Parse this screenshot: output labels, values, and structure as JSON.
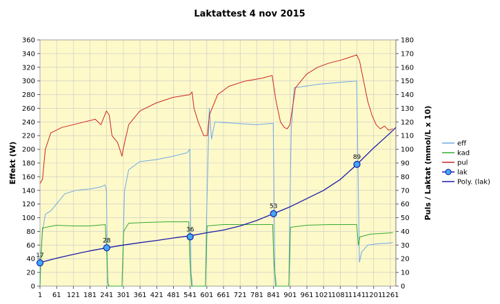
{
  "chart_data": {
    "type": "line",
    "title": "Laktattest 4 nov 2015",
    "ylabel": "Effekt (W)",
    "y2label": "Puls / Laktat (mmol/L x 10)",
    "xlim": [
      1,
      1281
    ],
    "ylim": [
      0,
      360
    ],
    "y2lim": [
      0,
      180
    ],
    "xticks": [
      "1",
      "61",
      "121",
      "181",
      "241",
      "301",
      "361",
      "421",
      "481",
      "541",
      "601",
      "661",
      "721",
      "781",
      "841",
      "901",
      "961",
      "1021",
      "1081",
      "1141",
      "1201",
      "1261"
    ],
    "yticks": [
      "0",
      "20",
      "40",
      "60",
      "80",
      "100",
      "120",
      "140",
      "160",
      "180",
      "200",
      "220",
      "240",
      "260",
      "280",
      "300",
      "320",
      "340",
      "360"
    ],
    "y2ticks": [
      "0",
      "10",
      "20",
      "30",
      "40",
      "50",
      "60",
      "70",
      "80",
      "90",
      "100",
      "110",
      "120",
      "130",
      "140",
      "150",
      "160",
      "170",
      "180"
    ],
    "grid": true,
    "legend_position": "right",
    "series": [
      {
        "name": "eff",
        "axis": "left",
        "color": "#6fa8e6",
        "points": [
          [
            1,
            0
          ],
          [
            5,
            50
          ],
          [
            10,
            80
          ],
          [
            20,
            105
          ],
          [
            40,
            110
          ],
          [
            60,
            120
          ],
          [
            90,
            135
          ],
          [
            130,
            140
          ],
          [
            180,
            142
          ],
          [
            220,
            145
          ],
          [
            235,
            148
          ],
          [
            240,
            140
          ],
          [
            244,
            5
          ],
          [
            250,
            0
          ],
          [
            296,
            0
          ],
          [
            300,
            60
          ],
          [
            305,
            140
          ],
          [
            320,
            170
          ],
          [
            360,
            182
          ],
          [
            420,
            185
          ],
          [
            480,
            190
          ],
          [
            530,
            195
          ],
          [
            540,
            200
          ],
          [
            544,
            20
          ],
          [
            550,
            0
          ],
          [
            596,
            0
          ],
          [
            600,
            100
          ],
          [
            606,
            200
          ],
          [
            610,
            260
          ],
          [
            618,
            215
          ],
          [
            630,
            240
          ],
          [
            700,
            238
          ],
          [
            780,
            236
          ],
          [
            840,
            238
          ],
          [
            846,
            20
          ],
          [
            852,
            0
          ],
          [
            896,
            0
          ],
          [
            900,
            120
          ],
          [
            905,
            230
          ],
          [
            915,
            290
          ],
          [
            950,
            292
          ],
          [
            1000,
            295
          ],
          [
            1080,
            298
          ],
          [
            1140,
            300
          ],
          [
            1146,
            140
          ],
          [
            1150,
            35
          ],
          [
            1158,
            50
          ],
          [
            1180,
            60
          ],
          [
            1220,
            62
          ],
          [
            1260,
            63
          ],
          [
            1270,
            64
          ]
        ]
      },
      {
        "name": "kad",
        "axis": "left",
        "color": "#33aa33",
        "points": [
          [
            1,
            0
          ],
          [
            4,
            40
          ],
          [
            10,
            85
          ],
          [
            60,
            89
          ],
          [
            120,
            88
          ],
          [
            180,
            88
          ],
          [
            236,
            90
          ],
          [
            240,
            60
          ],
          [
            246,
            0
          ],
          [
            296,
            0
          ],
          [
            302,
            80
          ],
          [
            320,
            92
          ],
          [
            380,
            93
          ],
          [
            460,
            94
          ],
          [
            536,
            94
          ],
          [
            540,
            40
          ],
          [
            546,
            0
          ],
          [
            596,
            0
          ],
          [
            602,
            88
          ],
          [
            660,
            90
          ],
          [
            740,
            90
          ],
          [
            800,
            90
          ],
          [
            838,
            90
          ],
          [
            842,
            40
          ],
          [
            848,
            0
          ],
          [
            896,
            0
          ],
          [
            902,
            86
          ],
          [
            960,
            89
          ],
          [
            1040,
            90
          ],
          [
            1100,
            90
          ],
          [
            1140,
            90
          ],
          [
            1146,
            60
          ],
          [
            1152,
            72
          ],
          [
            1190,
            76
          ],
          [
            1230,
            77
          ],
          [
            1270,
            78
          ]
        ]
      },
      {
        "name": "pul",
        "axis": "right",
        "color": "#cc2222",
        "points": [
          [
            1,
            75
          ],
          [
            10,
            78
          ],
          [
            20,
            100
          ],
          [
            40,
            112
          ],
          [
            80,
            116
          ],
          [
            120,
            118
          ],
          [
            160,
            120
          ],
          [
            200,
            122
          ],
          [
            220,
            118
          ],
          [
            240,
            128
          ],
          [
            250,
            125
          ],
          [
            260,
            110
          ],
          [
            280,
            105
          ],
          [
            296,
            95
          ],
          [
            300,
            100
          ],
          [
            320,
            118
          ],
          [
            360,
            128
          ],
          [
            420,
            134
          ],
          [
            480,
            138
          ],
          [
            540,
            140
          ],
          [
            548,
            142
          ],
          [
            555,
            130
          ],
          [
            570,
            120
          ],
          [
            590,
            110
          ],
          [
            603,
            110
          ],
          [
            610,
            125
          ],
          [
            640,
            140
          ],
          [
            680,
            146
          ],
          [
            740,
            150
          ],
          [
            800,
            152
          ],
          [
            836,
            154
          ],
          [
            850,
            135
          ],
          [
            866,
            120
          ],
          [
            880,
            116
          ],
          [
            890,
            115
          ],
          [
            900,
            118
          ],
          [
            920,
            145
          ],
          [
            960,
            155
          ],
          [
            1000,
            160
          ],
          [
            1040,
            163
          ],
          [
            1080,
            165
          ],
          [
            1110,
            167
          ],
          [
            1140,
            169
          ],
          [
            1150,
            165
          ],
          [
            1165,
            150
          ],
          [
            1180,
            135
          ],
          [
            1195,
            125
          ],
          [
            1210,
            118
          ],
          [
            1225,
            115
          ],
          [
            1240,
            117
          ],
          [
            1255,
            114
          ],
          [
            1270,
            115
          ]
        ]
      },
      {
        "name": "lak",
        "axis": "right",
        "color": "#1e90ff",
        "marker": "circle",
        "points": [
          [
            1,
            17
          ],
          [
            241,
            28
          ],
          [
            541,
            36
          ],
          [
            841,
            53
          ],
          [
            1141,
            89
          ]
        ],
        "labels": [
          "17",
          "28",
          "36",
          "53",
          "89"
        ]
      },
      {
        "name": "Poly. (lak)",
        "axis": "right",
        "color": "#1a1aaa",
        "points": [
          [
            1,
            17.2
          ],
          [
            61,
            20.4
          ],
          [
            121,
            23.2
          ],
          [
            181,
            25.8
          ],
          [
            241,
            28.0
          ],
          [
            301,
            30.0
          ],
          [
            361,
            31.8
          ],
          [
            421,
            33.4
          ],
          [
            481,
            35.2
          ],
          [
            541,
            36.8
          ],
          [
            601,
            39.0
          ],
          [
            661,
            41.0
          ],
          [
            721,
            44.0
          ],
          [
            781,
            48.0
          ],
          [
            841,
            53.0
          ],
          [
            901,
            58.0
          ],
          [
            961,
            64.0
          ],
          [
            1021,
            70.0
          ],
          [
            1081,
            78.0
          ],
          [
            1141,
            89.0
          ],
          [
            1201,
            101.0
          ],
          [
            1261,
            112.0
          ],
          [
            1281,
            116.0
          ]
        ]
      }
    ]
  }
}
